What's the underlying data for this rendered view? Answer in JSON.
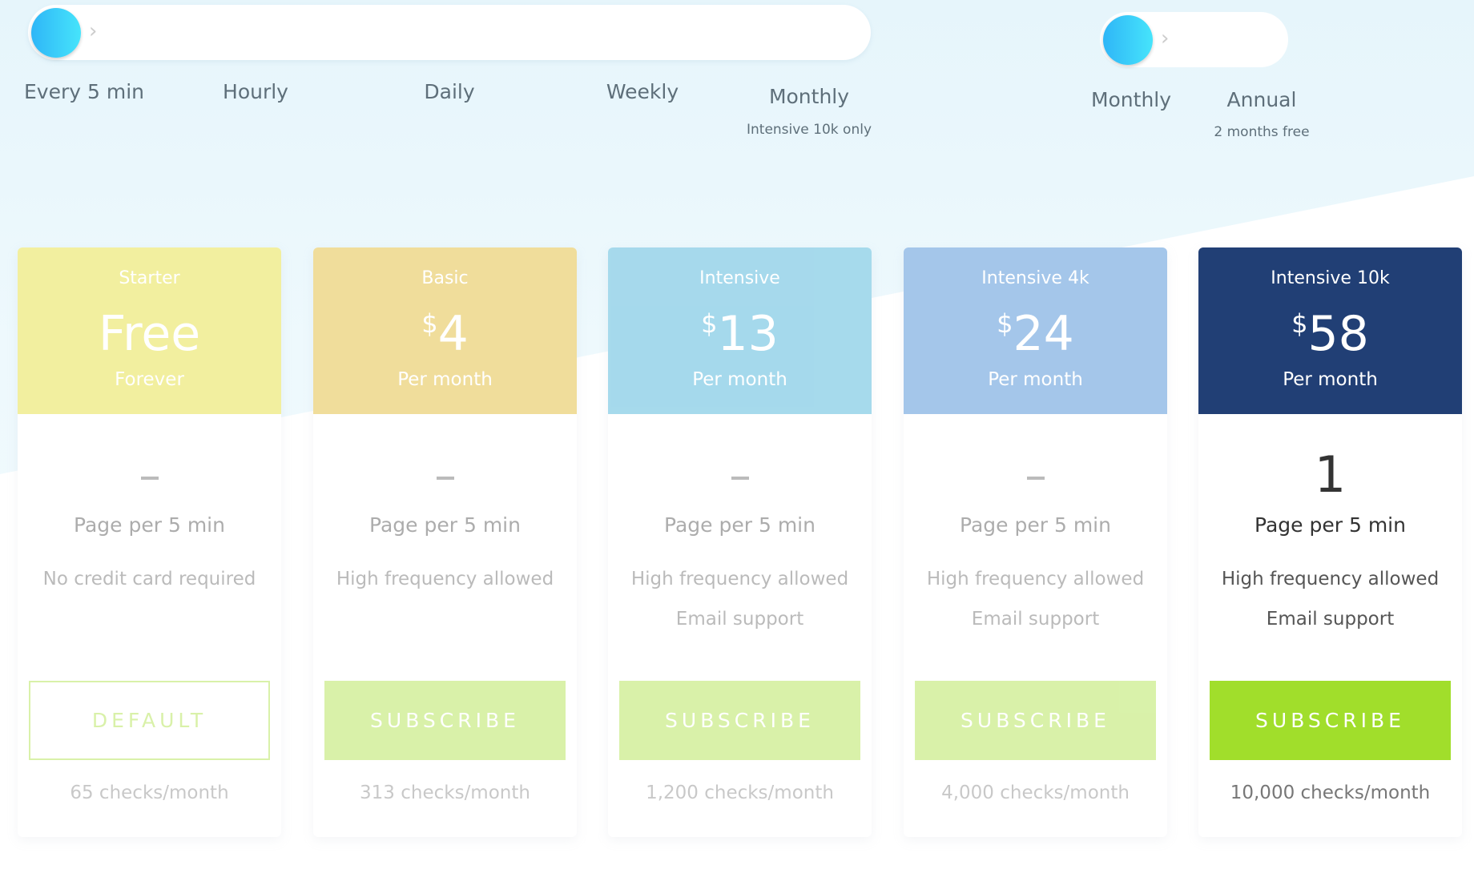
{
  "frequency": {
    "options": [
      "Every 5 min",
      "Hourly",
      "Daily",
      "Weekly",
      "Monthly"
    ],
    "monthly_note": "Intensive 10k only",
    "selected": "Every 5 min"
  },
  "billing": {
    "options": [
      "Monthly",
      "Annual"
    ],
    "annual_note": "2 months free",
    "selected": "Monthly"
  },
  "plans": [
    {
      "name": "Starter",
      "currency": "",
      "price": "Free",
      "period": "Forever",
      "pages": "–",
      "pages_label": "Page per 5 min",
      "features": [
        "No credit card required"
      ],
      "button": "DEFAULT",
      "checks": "65 checks/month",
      "color": "#eeea7f"
    },
    {
      "name": "Basic",
      "currency": "$",
      "price": "4",
      "period": "Per month",
      "pages": "–",
      "pages_label": "Page per 5 min",
      "features": [
        "High frequency allowed"
      ],
      "button": "SUBSCRIBE",
      "checks": "313 checks/month",
      "color": "#ebd27a"
    },
    {
      "name": "Intensive",
      "currency": "$",
      "price": "13",
      "period": "Per month",
      "pages": "–",
      "pages_label": "Page per 5 min",
      "features": [
        "High frequency allowed",
        "Email support"
      ],
      "button": "SUBSCRIBE",
      "checks": "1,200 checks/month",
      "color": "#88cde6"
    },
    {
      "name": "Intensive 4k",
      "currency": "$",
      "price": "24",
      "period": "Per month",
      "pages": "–",
      "pages_label": "Page per 5 min",
      "features": [
        "High frequency allowed",
        "Email support"
      ],
      "button": "SUBSCRIBE",
      "checks": "4,000 checks/month",
      "color": "#86b3e3"
    },
    {
      "name": "Intensive 10k",
      "currency": "$",
      "price": "58",
      "period": "Per month",
      "pages": "1",
      "pages_label": "Page per 5 min",
      "features": [
        "High frequency allowed",
        "Email support"
      ],
      "button": "SUBSCRIBE",
      "checks": "10,000 checks/month",
      "color": "#213f75"
    }
  ],
  "accent": "#a1de2b"
}
